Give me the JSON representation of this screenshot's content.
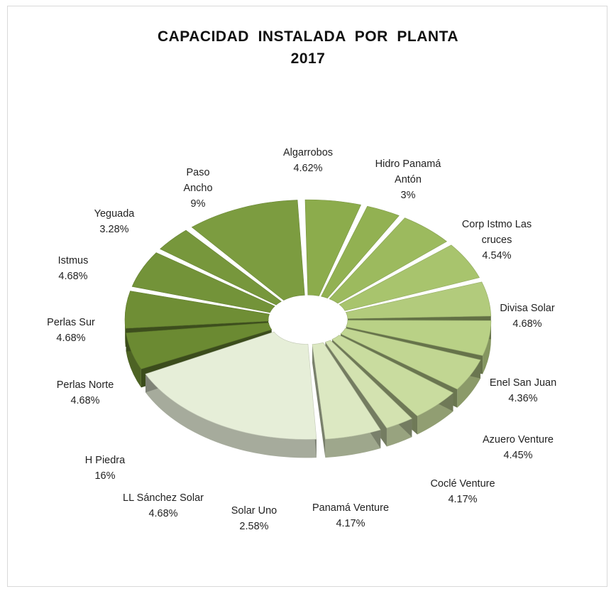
{
  "chart_data": {
    "type": "pie",
    "subtype": "3d-exploded-doughnut",
    "title": "CAPACIDAD  INSTALADA  POR  PLANTA",
    "subtitle": "2017",
    "legend": "none",
    "slices": [
      {
        "label": "Algarrobos",
        "value": 4.62,
        "value_label": "4.62%",
        "color": "#8cac4c"
      },
      {
        "label": "Hidro Panamá Antón",
        "value": 3,
        "value_label": "3%",
        "color": "#92b152"
      },
      {
        "label": "Corp Istmo Las cruces",
        "value": 4.54,
        "value_label": "4.54%",
        "color": "#9cba5e"
      },
      {
        "label": "Divisa Solar",
        "value": 4.68,
        "value_label": "4.68%",
        "color": "#a8c46d"
      },
      {
        "label": "Enel San Juan",
        "value": 4.36,
        "value_label": "4.36%",
        "color": "#b2cb7c"
      },
      {
        "label": "Azuero Venture",
        "value": 4.45,
        "value_label": "4.45%",
        "color": "#b9d186"
      },
      {
        "label": "Coclé Venture",
        "value": 4.17,
        "value_label": "4.17%",
        "color": "#c1d692"
      },
      {
        "label": "Panamá Venture",
        "value": 4.17,
        "value_label": "4.17%",
        "color": "#c9dc9f"
      },
      {
        "label": "Solar Uno",
        "value": 2.58,
        "value_label": "2.58%",
        "color": "#d3e2b0"
      },
      {
        "label": "LL Sánchez Solar",
        "value": 4.68,
        "value_label": "4.68%",
        "color": "#dce8c2"
      },
      {
        "label": "H Piedra",
        "value": 16,
        "value_label": "16%",
        "color": "#e6eed8"
      },
      {
        "label": "Perlas Norte",
        "value": 4.68,
        "value_label": "4.68%",
        "color": "#6b8a32"
      },
      {
        "label": "Perlas Sur",
        "value": 4.68,
        "value_label": "4.68%",
        "color": "#6f8e35"
      },
      {
        "label": "Istmus",
        "value": 4.68,
        "value_label": "4.68%",
        "color": "#739339"
      },
      {
        "label": "Yeguada",
        "value": 3.28,
        "value_label": "3.28%",
        "color": "#77973c"
      },
      {
        "label": "Paso Ancho",
        "value": 9,
        "value_label": "9%",
        "color": "#7c9c40"
      }
    ]
  }
}
